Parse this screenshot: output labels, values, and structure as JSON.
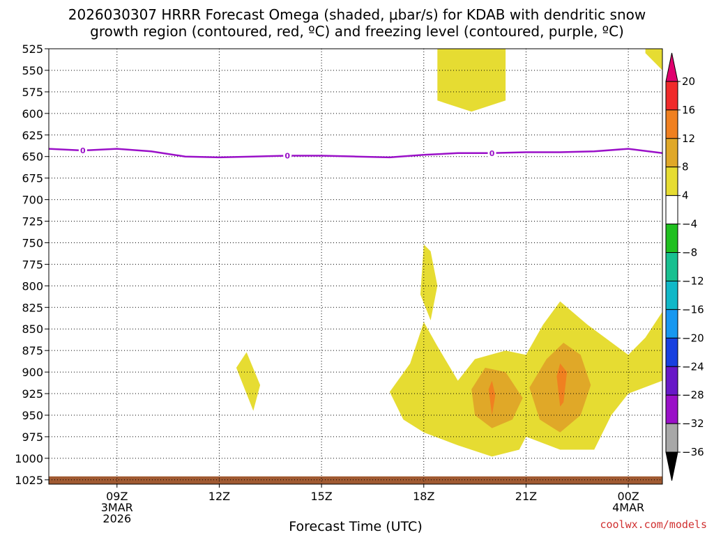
{
  "chart_data": {
    "type": "heatmap",
    "title_line1": "2026030307 HRRR Forecast Omega (shaded, μbar/s) for KDAB with dendritic snow",
    "title_line2": "growth region (contoured, red, ºC) and freezing level (contoured, purple, ºC)",
    "xlabel": "Forecast Time (UTC)",
    "credit": "coolwx.com/models",
    "x_range_hours": [
      7,
      25
    ],
    "x_ticks": [
      {
        "hour": 9,
        "lines": [
          "09Z",
          "3MAR",
          "2026"
        ]
      },
      {
        "hour": 12,
        "lines": [
          "12Z"
        ]
      },
      {
        "hour": 15,
        "lines": [
          "15Z"
        ]
      },
      {
        "hour": 18,
        "lines": [
          "18Z"
        ]
      },
      {
        "hour": 21,
        "lines": [
          "21Z"
        ]
      },
      {
        "hour": 24,
        "lines": [
          "00Z",
          "4MAR"
        ]
      }
    ],
    "y_range_hpa": [
      525,
      1030
    ],
    "y_ticks": [
      525,
      550,
      575,
      600,
      625,
      650,
      675,
      700,
      725,
      750,
      775,
      800,
      825,
      850,
      875,
      900,
      925,
      950,
      975,
      1000,
      1025
    ],
    "colorbar": {
      "labels": [
        "20",
        "16",
        "12",
        "8",
        "4",
        "-4",
        "-8",
        "-12",
        "-16",
        "-20",
        "-24",
        "-28",
        "-32",
        "-36"
      ],
      "bins": [
        "#e0006e",
        "#f02a2a",
        "#f08020",
        "#e0a828",
        "#e6dc32",
        "#ffffff",
        "#20c020",
        "#18c090",
        "#10b8c8",
        "#1898f0",
        "#1840e0",
        "#6818c8",
        "#9a10c8",
        "#a8a8a8",
        "#000000"
      ]
    },
    "shaded_regions": [
      {
        "level": "4-8",
        "color": "#e6dc32",
        "points": [
          [
            18.4,
            525
          ],
          [
            20.4,
            525
          ],
          [
            20.4,
            585
          ],
          [
            19.4,
            598
          ],
          [
            18.4,
            585
          ]
        ]
      },
      {
        "level": "4-8",
        "color": "#e6dc32",
        "points": [
          [
            24.5,
            525
          ],
          [
            25.0,
            525
          ],
          [
            25.0,
            550
          ],
          [
            24.5,
            530
          ]
        ]
      },
      {
        "level": "4-8",
        "color": "#e6dc32",
        "points": [
          [
            17.9,
            810
          ],
          [
            18.0,
            752
          ],
          [
            18.2,
            760
          ],
          [
            18.4,
            800
          ],
          [
            18.2,
            840
          ]
        ]
      },
      {
        "level": "4-8",
        "color": "#e6dc32",
        "points": [
          [
            12.5,
            895
          ],
          [
            12.8,
            877
          ],
          [
            13.2,
            915
          ],
          [
            13.0,
            945
          ]
        ]
      },
      {
        "level": "4-8",
        "color": "#e6dc32",
        "points": [
          [
            17.0,
            923
          ],
          [
            17.6,
            890
          ],
          [
            18.0,
            842
          ],
          [
            18.4,
            870
          ],
          [
            19.0,
            910
          ],
          [
            19.5,
            885
          ],
          [
            20.4,
            875
          ],
          [
            21.0,
            880
          ],
          [
            21.5,
            845
          ],
          [
            22.0,
            818
          ],
          [
            22.8,
            845
          ],
          [
            24.0,
            880
          ],
          [
            24.5,
            860
          ],
          [
            25.0,
            830
          ],
          [
            25.0,
            910
          ],
          [
            24.0,
            925
          ],
          [
            23.5,
            950
          ],
          [
            23.0,
            990
          ],
          [
            22.0,
            990
          ],
          [
            21.0,
            975
          ],
          [
            20.8,
            990
          ],
          [
            20.0,
            998
          ],
          [
            19.0,
            985
          ],
          [
            18.0,
            970
          ],
          [
            17.4,
            955
          ]
        ]
      },
      {
        "level": "8-12",
        "color": "#e0a828",
        "points": [
          [
            19.4,
            920
          ],
          [
            19.8,
            895
          ],
          [
            20.4,
            900
          ],
          [
            20.9,
            930
          ],
          [
            20.6,
            955
          ],
          [
            20.0,
            965
          ],
          [
            19.5,
            950
          ]
        ]
      },
      {
        "level": "8-12",
        "color": "#e0a828",
        "points": [
          [
            21.1,
            918
          ],
          [
            21.6,
            885
          ],
          [
            22.1,
            866
          ],
          [
            22.6,
            880
          ],
          [
            22.9,
            915
          ],
          [
            22.6,
            950
          ],
          [
            22.0,
            970
          ],
          [
            21.4,
            955
          ]
        ]
      },
      {
        "level": "12-16",
        "color": "#f08020",
        "points": [
          [
            19.9,
            920
          ],
          [
            20.0,
            910
          ],
          [
            20.1,
            927
          ],
          [
            20.0,
            950
          ]
        ]
      },
      {
        "level": "12-16",
        "color": "#f08020",
        "points": [
          [
            21.9,
            905
          ],
          [
            22.0,
            890
          ],
          [
            22.2,
            900
          ],
          [
            22.1,
            935
          ],
          [
            22.0,
            940
          ]
        ]
      }
    ],
    "freezing_level": {
      "label": "0",
      "color": "#9a10c8",
      "points": [
        [
          7.0,
          641
        ],
        [
          8.0,
          643
        ],
        [
          9.0,
          641
        ],
        [
          10.0,
          644
        ],
        [
          11.0,
          650
        ],
        [
          12.0,
          651
        ],
        [
          13.0,
          650
        ],
        [
          14.0,
          649
        ],
        [
          15.0,
          649
        ],
        [
          16.0,
          650
        ],
        [
          17.0,
          651
        ],
        [
          18.0,
          648
        ],
        [
          19.0,
          646
        ],
        [
          20.0,
          646
        ],
        [
          21.0,
          645
        ],
        [
          22.0,
          645
        ],
        [
          23.0,
          644
        ],
        [
          24.0,
          641
        ],
        [
          25.0,
          646
        ]
      ],
      "label_hours": [
        8.0,
        14.0,
        20.0
      ]
    },
    "terrain": {
      "color": "#a05a32",
      "bottom_hpa": 1030,
      "top_hpa": 1021
    }
  }
}
